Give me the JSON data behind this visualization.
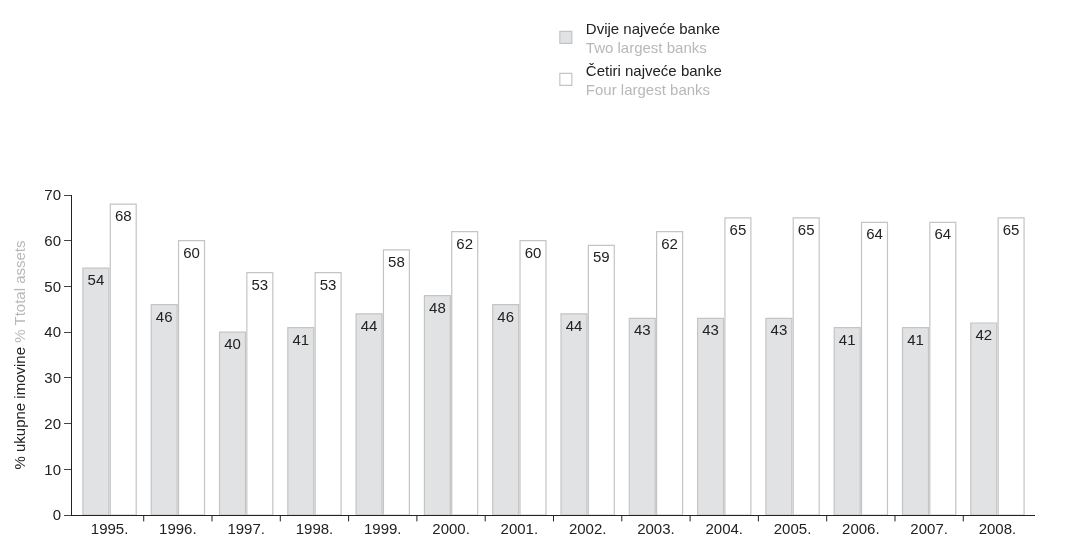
{
  "chart_data": {
    "type": "bar",
    "ylabel": "% ukupne imovine\n% Ttotal assets",
    "categories": [
      "1995.",
      "1996.",
      "1997.",
      "1998.",
      "1999.",
      "2000.",
      "2001.",
      "2002.",
      "2003.",
      "2004.",
      "2005.",
      "2006.",
      "2007.",
      "2008."
    ],
    "series": [
      {
        "name": "Dvije najveće banke\nTwo largest banks",
        "color": "#e1e2e4",
        "values": [
          54,
          46,
          40,
          41,
          44,
          48,
          46,
          44,
          43,
          43,
          43,
          41,
          41,
          42
        ]
      },
      {
        "name": "Četiri najveće banke\nFour largest banks",
        "color": "#ffffff",
        "values": [
          68,
          60,
          53,
          53,
          58,
          62,
          60,
          59,
          62,
          65,
          65,
          64,
          64,
          65
        ]
      }
    ],
    "ylim": [
      0,
      70
    ],
    "yticks": [
      0,
      10,
      20,
      30,
      40,
      50,
      60,
      70
    ],
    "data_labels": true,
    "legend": "top right"
  }
}
